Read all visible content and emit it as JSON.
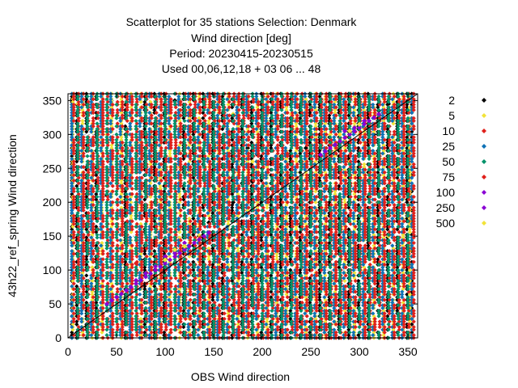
{
  "chart_data": {
    "type": "scatter",
    "title_lines": [
      "Scatterplot for   35 stations Selection: Denmark",
      "Wind direction [deg]",
      "Period: 20230415-20230515",
      "Used  00,06,12,18  + 03 06 ... 48"
    ],
    "xlabel": "OBS Wind direction",
    "ylabel": "43h22_ref_spring Wind direction",
    "xlim": [
      0,
      360
    ],
    "ylim": [
      0,
      360
    ],
    "xticks": [
      0,
      50,
      100,
      150,
      200,
      250,
      300,
      350
    ],
    "yticks": [
      0,
      50,
      100,
      150,
      200,
      250,
      300,
      350
    ],
    "grid": true,
    "diagonal_line": true,
    "legend_position": "right",
    "marker": "diamond",
    "series": [
      {
        "name": "2",
        "color": "#000000",
        "columns": [
          5,
          10,
          20,
          30,
          60,
          80,
          90,
          100,
          120,
          130,
          140,
          150,
          160,
          170,
          180,
          190,
          200,
          210,
          220,
          230,
          240,
          250,
          260,
          270,
          280,
          290,
          300,
          310,
          320,
          330,
          340,
          350,
          355
        ],
        "points": [
          [
            20,
            330
          ],
          [
            25,
            290
          ],
          [
            30,
            250
          ],
          [
            40,
            210
          ],
          [
            60,
            170
          ],
          [
            80,
            195
          ],
          [
            90,
            305
          ],
          [
            100,
            330
          ],
          [
            110,
            350
          ],
          [
            115,
            300
          ],
          [
            120,
            270
          ],
          [
            125,
            230
          ],
          [
            130,
            350
          ],
          [
            135,
            150
          ],
          [
            145,
            170
          ],
          [
            150,
            280
          ],
          [
            155,
            320
          ],
          [
            160,
            240
          ],
          [
            165,
            230
          ],
          [
            170,
            200
          ],
          [
            175,
            260
          ],
          [
            180,
            300
          ],
          [
            185,
            280
          ],
          [
            190,
            230
          ],
          [
            195,
            270
          ],
          [
            200,
            250
          ],
          [
            210,
            190
          ],
          [
            215,
            320
          ],
          [
            220,
            230
          ],
          [
            225,
            270
          ],
          [
            230,
            300
          ],
          [
            240,
            220
          ],
          [
            245,
            280
          ],
          [
            250,
            240
          ],
          [
            255,
            300
          ],
          [
            260,
            260
          ],
          [
            265,
            320
          ],
          [
            270,
            290
          ],
          [
            275,
            270
          ],
          [
            280,
            310
          ],
          [
            285,
            290
          ],
          [
            290,
            300
          ],
          [
            295,
            280
          ],
          [
            300,
            320
          ],
          [
            305,
            310
          ],
          [
            310,
            330
          ],
          [
            315,
            300
          ],
          [
            320,
            335
          ],
          [
            325,
            310
          ],
          [
            330,
            345
          ],
          [
            340,
            340
          ],
          [
            350,
            350
          ],
          [
            90,
            70
          ],
          [
            100,
            90
          ],
          [
            110,
            110
          ],
          [
            130,
            130
          ],
          [
            140,
            140
          ],
          [
            150,
            150
          ],
          [
            60,
            100
          ],
          [
            75,
            115
          ],
          [
            95,
            130
          ]
        ]
      },
      {
        "name": "5",
        "color": "#f2e338",
        "columns": [
          5,
          15,
          25,
          35,
          45,
          55,
          65,
          75,
          85,
          95,
          105,
          115,
          125,
          135,
          145,
          155,
          165,
          175,
          185,
          195,
          205,
          215,
          225,
          235,
          245,
          255,
          265,
          275,
          285,
          295,
          305,
          315,
          325,
          335,
          345,
          352
        ],
        "points": [
          [
            10,
            345
          ],
          [
            40,
            300
          ],
          [
            55,
            270
          ],
          [
            70,
            180
          ],
          [
            85,
            340
          ],
          [
            95,
            220
          ],
          [
            105,
            160
          ],
          [
            115,
            335
          ],
          [
            125,
            290
          ],
          [
            140,
            200
          ],
          [
            160,
            180
          ],
          [
            170,
            330
          ],
          [
            190,
            260
          ],
          [
            200,
            210
          ],
          [
            215,
            350
          ],
          [
            230,
            330
          ],
          [
            240,
            190
          ],
          [
            250,
            280
          ],
          [
            260,
            240
          ],
          [
            270,
            300
          ],
          [
            275,
            315
          ],
          [
            280,
            280
          ],
          [
            290,
            260
          ],
          [
            300,
            300
          ],
          [
            310,
            240
          ],
          [
            320,
            200
          ],
          [
            330,
            150
          ],
          [
            340,
            250
          ],
          [
            350,
            180
          ]
        ]
      },
      {
        "name": "10",
        "color": "#e0201b",
        "columns": [
          10,
          20,
          30,
          40,
          50,
          60,
          70,
          80,
          90,
          100,
          110,
          120,
          130,
          140,
          150,
          160,
          170,
          180,
          190,
          200,
          210,
          220,
          230,
          240,
          250,
          260,
          270,
          280,
          290,
          300,
          310,
          320,
          330,
          340,
          350
        ],
        "points": [
          [
            70,
            110
          ],
          [
            100,
            130
          ],
          [
            270,
            285
          ],
          [
            280,
            295
          ],
          [
            290,
            300
          ],
          [
            300,
            310
          ],
          [
            310,
            320
          ],
          [
            320,
            330
          ],
          [
            330,
            340
          ]
        ]
      },
      {
        "name": "25",
        "color": "#0f72b6",
        "columns": [
          5,
          15,
          25,
          35,
          45,
          55,
          65,
          75,
          85,
          95,
          105,
          115,
          125,
          135,
          145,
          155,
          165,
          175,
          185,
          195,
          205,
          215,
          225,
          235,
          245,
          255,
          265,
          275,
          285,
          295,
          305,
          315,
          325,
          335,
          345,
          355
        ],
        "points": []
      },
      {
        "name": "50",
        "color": "#00926a",
        "columns": [
          10,
          20,
          30,
          40,
          50,
          60,
          70,
          80,
          90,
          100,
          110,
          120,
          130,
          140,
          150,
          160,
          170,
          180,
          190,
          200,
          210,
          220,
          230,
          240,
          250,
          260,
          270,
          280,
          290,
          300,
          310,
          320,
          330,
          340,
          350
        ],
        "points": []
      },
      {
        "name": "75",
        "color": "#e0201b",
        "columns": [
          5,
          15,
          25,
          35,
          45,
          55,
          65,
          75,
          85,
          95,
          105,
          115,
          125,
          135,
          145,
          155,
          165,
          175,
          185,
          195,
          205,
          215,
          225,
          235,
          245,
          255,
          265,
          275,
          285,
          295,
          305,
          315,
          325,
          335,
          345,
          355
        ],
        "points": []
      },
      {
        "name": "100",
        "color": "#8a00d4",
        "columns": [],
        "points": [
          [
            60,
            70
          ],
          [
            65,
            75
          ],
          [
            70,
            80
          ],
          [
            75,
            85
          ],
          [
            80,
            90
          ],
          [
            85,
            95
          ],
          [
            90,
            100
          ],
          [
            95,
            105
          ],
          [
            100,
            110
          ],
          [
            105,
            115
          ],
          [
            110,
            120
          ],
          [
            115,
            125
          ],
          [
            120,
            130
          ],
          [
            125,
            135
          ],
          [
            130,
            140
          ],
          [
            135,
            145
          ],
          [
            140,
            150
          ],
          [
            145,
            155
          ],
          [
            40,
            50
          ],
          [
            45,
            55
          ],
          [
            50,
            60
          ],
          [
            55,
            65
          ],
          [
            270,
            280
          ],
          [
            275,
            285
          ],
          [
            280,
            290
          ],
          [
            285,
            295
          ],
          [
            290,
            300
          ],
          [
            295,
            305
          ],
          [
            300,
            310
          ],
          [
            305,
            315
          ],
          [
            310,
            320
          ],
          [
            315,
            325
          ],
          [
            320,
            330
          ],
          [
            260,
            270
          ],
          [
            265,
            275
          ]
        ]
      },
      {
        "name": "250",
        "color": "#8a00d4",
        "columns": [],
        "points": [
          [
            70,
            85
          ],
          [
            80,
            95
          ],
          [
            90,
            105
          ],
          [
            100,
            120
          ],
          [
            110,
            125
          ],
          [
            120,
            140
          ],
          [
            285,
            305
          ],
          [
            295,
            310
          ],
          [
            305,
            320
          ]
        ]
      },
      {
        "name": "500",
        "color": "#f2e338",
        "columns": [],
        "points": [
          [
            100,
            115
          ],
          [
            110,
            130
          ],
          [
            120,
            135
          ],
          [
            280,
            300
          ],
          [
            290,
            305
          ],
          [
            300,
            315
          ]
        ]
      }
    ]
  }
}
